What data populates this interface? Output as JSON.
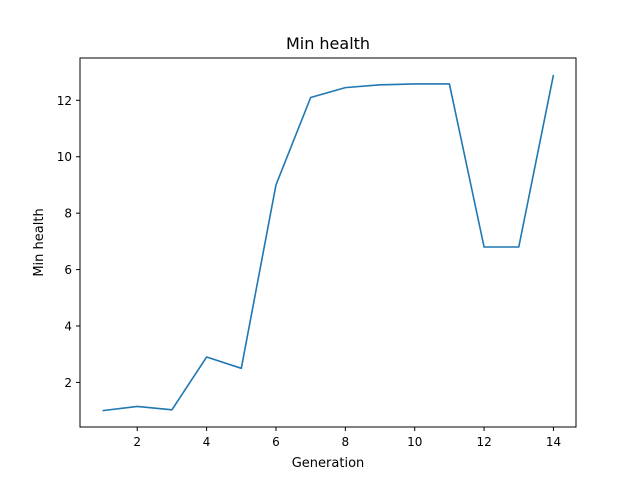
{
  "chart_data": {
    "type": "line",
    "title": "Min health",
    "xlabel": "Generation",
    "ylabel": "Min health",
    "xlim": [
      0.35,
      14.65
    ],
    "ylim": [
      0.42,
      13.5
    ],
    "xticks": [
      2,
      4,
      6,
      8,
      10,
      12,
      14
    ],
    "yticks": [
      2,
      4,
      6,
      8,
      10,
      12
    ],
    "grid": false,
    "series": [
      {
        "color": "#1f77b4",
        "x": [
          1,
          2,
          3,
          4,
          5,
          6,
          7,
          8,
          9,
          10,
          11,
          12,
          13,
          14
        ],
        "y": [
          1.0,
          1.15,
          1.03,
          2.9,
          2.5,
          9.0,
          12.1,
          12.45,
          12.55,
          12.58,
          12.58,
          6.8,
          6.8,
          12.9
        ]
      }
    ]
  }
}
